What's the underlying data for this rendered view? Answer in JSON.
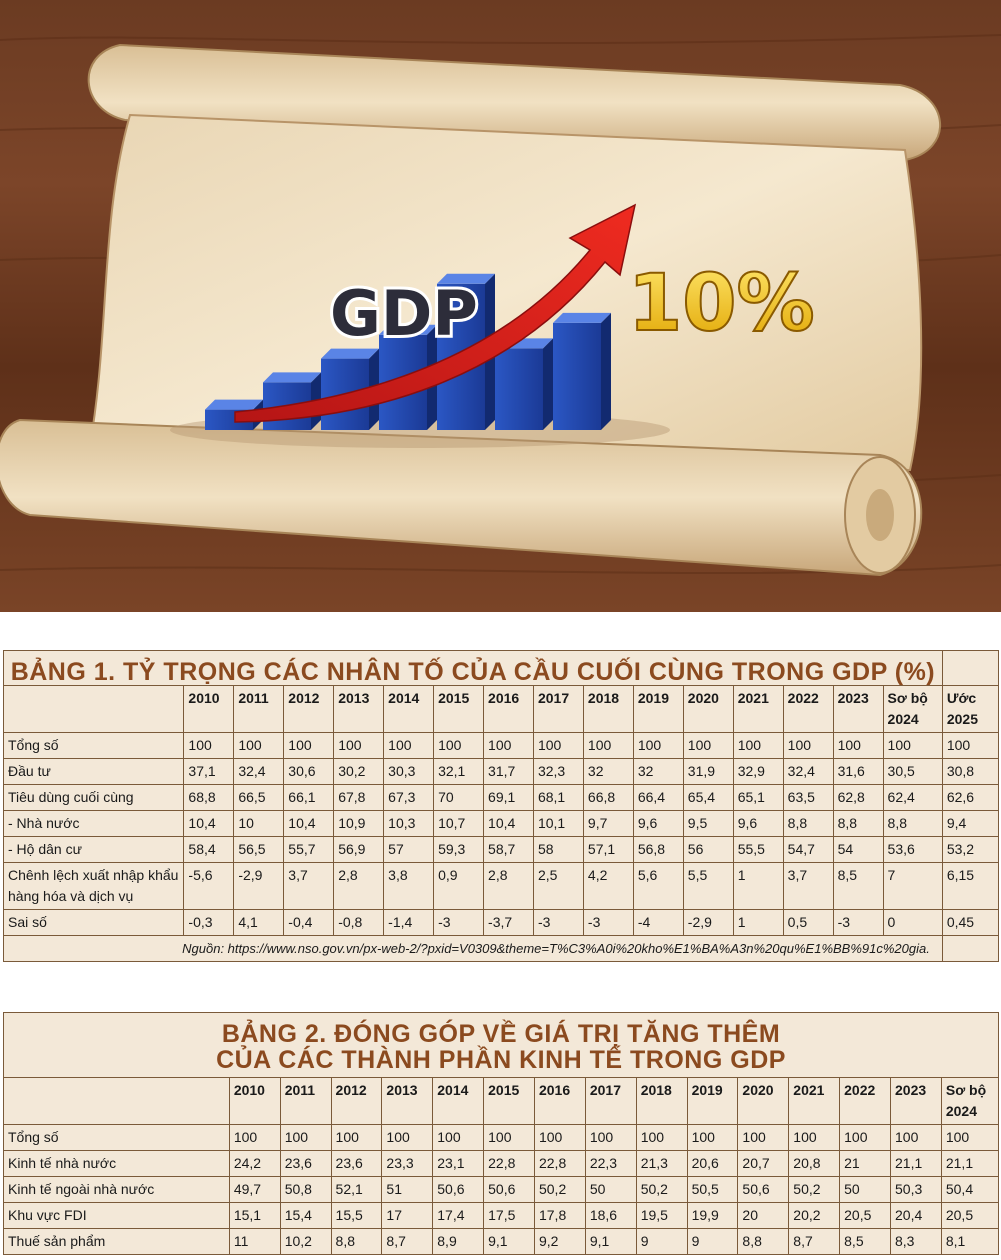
{
  "hero": {
    "gdp_text": "GDP",
    "percent_text": "10%",
    "bar_levels": [
      0.12,
      0.28,
      0.42,
      0.56,
      0.86,
      0.48,
      0.63
    ]
  },
  "table1": {
    "title": "BẢNG 1. TỶ TRỌNG CÁC NHÂN TỐ CỦA CẦU CUỐI CÙNG TRONG GDP (%)",
    "columns": [
      "2010",
      "2011",
      "2012",
      "2013",
      "2014",
      "2015",
      "2016",
      "2017",
      "2018",
      "2019",
      "2020",
      "2021",
      "2022",
      "2023",
      "Sơ bộ 2024",
      "Ước 2025"
    ],
    "rows": [
      {
        "label": "Tổng số",
        "values": [
          "100",
          "100",
          "100",
          "100",
          "100",
          "100",
          "100",
          "100",
          "100",
          "100",
          "100",
          "100",
          "100",
          "100",
          "100",
          "100"
        ]
      },
      {
        "label": "Đầu tư",
        "values": [
          "37,1",
          "32,4",
          "30,6",
          "30,2",
          "30,3",
          "32,1",
          "31,7",
          "32,3",
          "32",
          "32",
          "31,9",
          "32,9",
          "32,4",
          "31,6",
          "30,5",
          "30,8"
        ]
      },
      {
        "label": "Tiêu dùng cuối cùng",
        "values": [
          "68,8",
          "66,5",
          "66,1",
          "67,8",
          "67,3",
          "70",
          "69,1",
          "68,1",
          "66,8",
          "66,4",
          "65,4",
          "65,1",
          "63,5",
          "62,8",
          "62,4",
          "62,6"
        ]
      },
      {
        "label": "- Nhà nước",
        "values": [
          "10,4",
          "10",
          "10,4",
          "10,9",
          "10,3",
          "10,7",
          "10,4",
          "10,1",
          "9,7",
          "9,6",
          "9,5",
          "9,6",
          "8,8",
          "8,8",
          "8,8",
          "9,4"
        ]
      },
      {
        "label": "- Hộ dân cư",
        "values": [
          "58,4",
          "56,5",
          "55,7",
          "56,9",
          "57",
          "59,3",
          "58,7",
          "58",
          "57,1",
          "56,8",
          "56",
          "55,5",
          "54,7",
          "54",
          "53,6",
          "53,2"
        ]
      },
      {
        "label": "Chênh lệch xuất nhập khẩu hàng hóa và dịch vụ",
        "values": [
          "-5,6",
          "-2,9",
          "3,7",
          "2,8",
          "3,8",
          "0,9",
          "2,8",
          "2,5",
          "4,2",
          "5,6",
          "5,5",
          "1",
          "3,7",
          "8,5",
          "7",
          "6,15"
        ]
      },
      {
        "label": "Sai số",
        "values": [
          "-0,3",
          "4,1",
          "-0,4",
          "-0,8",
          "-1,4",
          "-3",
          "-3,7",
          "-3",
          "-3",
          "-4",
          "-2,9",
          "1",
          "0,5",
          "-3",
          "0",
          "0,45"
        ]
      }
    ],
    "source": "Nguồn: https://www.nso.gov.vn/px-web-2/?pxid=V0309&theme=T%C3%A0i%20kho%E1%BA%A3n%20qu%E1%BB%91c%20gia."
  },
  "table2": {
    "title_line1": "BẢNG 2. ĐÓNG GÓP VỀ GIÁ TRỊ TĂNG THÊM",
    "title_line2": "CỦA CÁC THÀNH PHẦN KINH TẾ TRONG GDP",
    "columns": [
      "2010",
      "2011",
      "2012",
      "2013",
      "2014",
      "2015",
      "2016",
      "2017",
      "2018",
      "2019",
      "2020",
      "2021",
      "2022",
      "2023",
      "Sơ bộ 2024"
    ],
    "rows": [
      {
        "label": "Tổng số",
        "values": [
          "100",
          "100",
          "100",
          "100",
          "100",
          "100",
          "100",
          "100",
          "100",
          "100",
          "100",
          "100",
          "100",
          "100",
          "100"
        ]
      },
      {
        "label": "Kinh tế nhà nước",
        "values": [
          "24,2",
          "23,6",
          "23,6",
          "23,3",
          "23,1",
          "22,8",
          "22,8",
          "22,3",
          "21,3",
          "20,6",
          "20,7",
          "20,8",
          "21",
          "21,1",
          "21,1"
        ]
      },
      {
        "label": "Kinh tế ngoài nhà nước",
        "values": [
          "49,7",
          "50,8",
          "52,1",
          "51",
          "50,6",
          "50,6",
          "50,2",
          "50",
          "50,2",
          "50,5",
          "50,6",
          "50,2",
          "50",
          "50,3",
          "50,4"
        ]
      },
      {
        "label": "Khu vực FDI",
        "values": [
          "15,1",
          "15,4",
          "15,5",
          "17",
          "17,4",
          "17,5",
          "17,8",
          "18,6",
          "19,5",
          "19,9",
          "20",
          "20,2",
          "20,5",
          "20,4",
          "20,5"
        ]
      },
      {
        "label": "Thuế sản phẩm",
        "values": [
          "11",
          "10,2",
          "8,8",
          "8,7",
          "8,9",
          "9,1",
          "9,2",
          "9,1",
          "9",
          "9",
          "8,8",
          "8,7",
          "8,5",
          "8,3",
          "8,1"
        ]
      }
    ]
  }
}
